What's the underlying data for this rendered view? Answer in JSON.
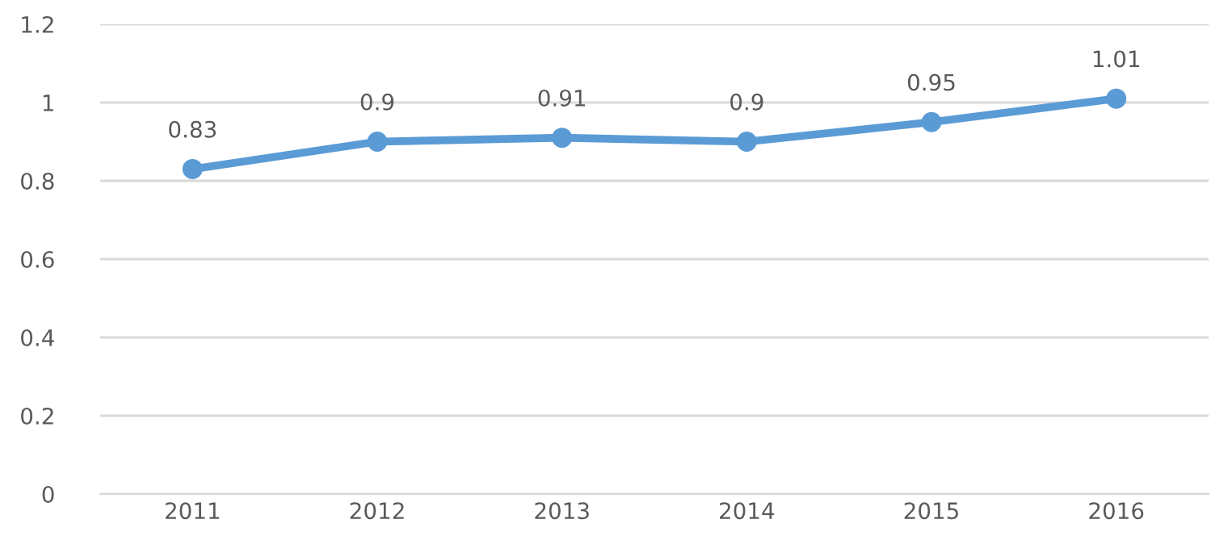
{
  "chart_data": {
    "type": "line",
    "categories": [
      "2011",
      "2012",
      "2013",
      "2014",
      "2015",
      "2016"
    ],
    "series": [
      {
        "color": "#5b9bd5",
        "values": [
          0.83,
          0.9,
          0.91,
          0.9,
          0.95,
          1.01
        ]
      }
    ],
    "ylim": [
      0,
      1.2
    ],
    "yticks": [
      0,
      0.2,
      0.4,
      0.6,
      0.8,
      1,
      1.2
    ],
    "grid": "y",
    "marker": "circle",
    "line_style": "solid",
    "data_labels": true,
    "legend": false
  }
}
